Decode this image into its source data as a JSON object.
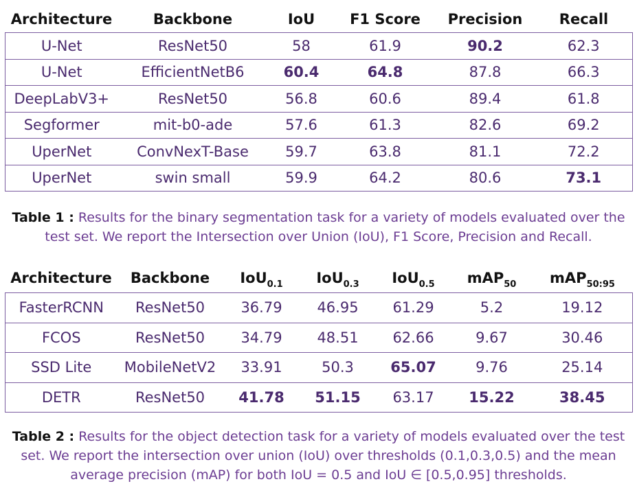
{
  "table1": {
    "headers": [
      "Architecture",
      "Backbone",
      "IoU",
      "F1 Score",
      "Precision",
      "Recall"
    ],
    "rows": [
      [
        "U-Net",
        "ResNet50",
        "58",
        "61.9",
        "90.2",
        "62.3"
      ],
      [
        "U-Net",
        "EfficientNetB6",
        "60.4",
        "64.8",
        "87.8",
        "66.3"
      ],
      [
        "DeepLabV3+",
        "ResNet50",
        "56.8",
        "60.6",
        "89.4",
        "61.8"
      ],
      [
        "Segformer",
        "mit-b0-ade",
        "57.6",
        "61.3",
        "82.6",
        "69.2"
      ],
      [
        "UperNet",
        "ConvNexT-Base",
        "59.7",
        "63.8",
        "81.1",
        "72.2"
      ],
      [
        "UperNet",
        "swin small",
        "59.9",
        "64.2",
        "80.6",
        "73.1"
      ]
    ]
  },
  "caption1": {
    "label": "Table 1 :",
    "text": " Results for the binary segmentation task for a variety of models evaluated over the test set. We report the Intersection over Union (IoU),  F1 Score, Precision and Recall."
  },
  "table2": {
    "headers": [
      {
        "main": "Architecture",
        "sub": ""
      },
      {
        "main": "Backbone",
        "sub": ""
      },
      {
        "main": "IoU",
        "sub": "0.1"
      },
      {
        "main": "IoU",
        "sub": "0.3"
      },
      {
        "main": "IoU",
        "sub": "0.5"
      },
      {
        "main": "mAP",
        "sub": "50"
      },
      {
        "main": "mAP",
        "sub": "50:95"
      }
    ],
    "rows": [
      [
        "FasterRCNN",
        "ResNet50",
        "36.79",
        "46.95",
        "61.29",
        "5.2",
        "19.12"
      ],
      [
        "FCOS",
        "ResNet50",
        "34.79",
        "48.51",
        "62.66",
        "9.67",
        "30.46"
      ],
      [
        "SSD Lite",
        "MobileNetV2",
        "33.91",
        "50.3",
        "65.07",
        "9.76",
        "25.14"
      ],
      [
        "DETR",
        "ResNet50",
        "41.78",
        "51.15",
        "63.17",
        "15.22",
        "38.45"
      ]
    ]
  },
  "caption2": {
    "label": "Table 2 :",
    "text": " Results for the object detection task for a variety of models evaluated over the test set. We report the intersection over union (IoU) over thresholds (0.1,0.3,0.5) and the mean average precision (mAP) for both IoU = 0.5 and IoU ∈ [0.5,0.95] thresholds."
  }
}
